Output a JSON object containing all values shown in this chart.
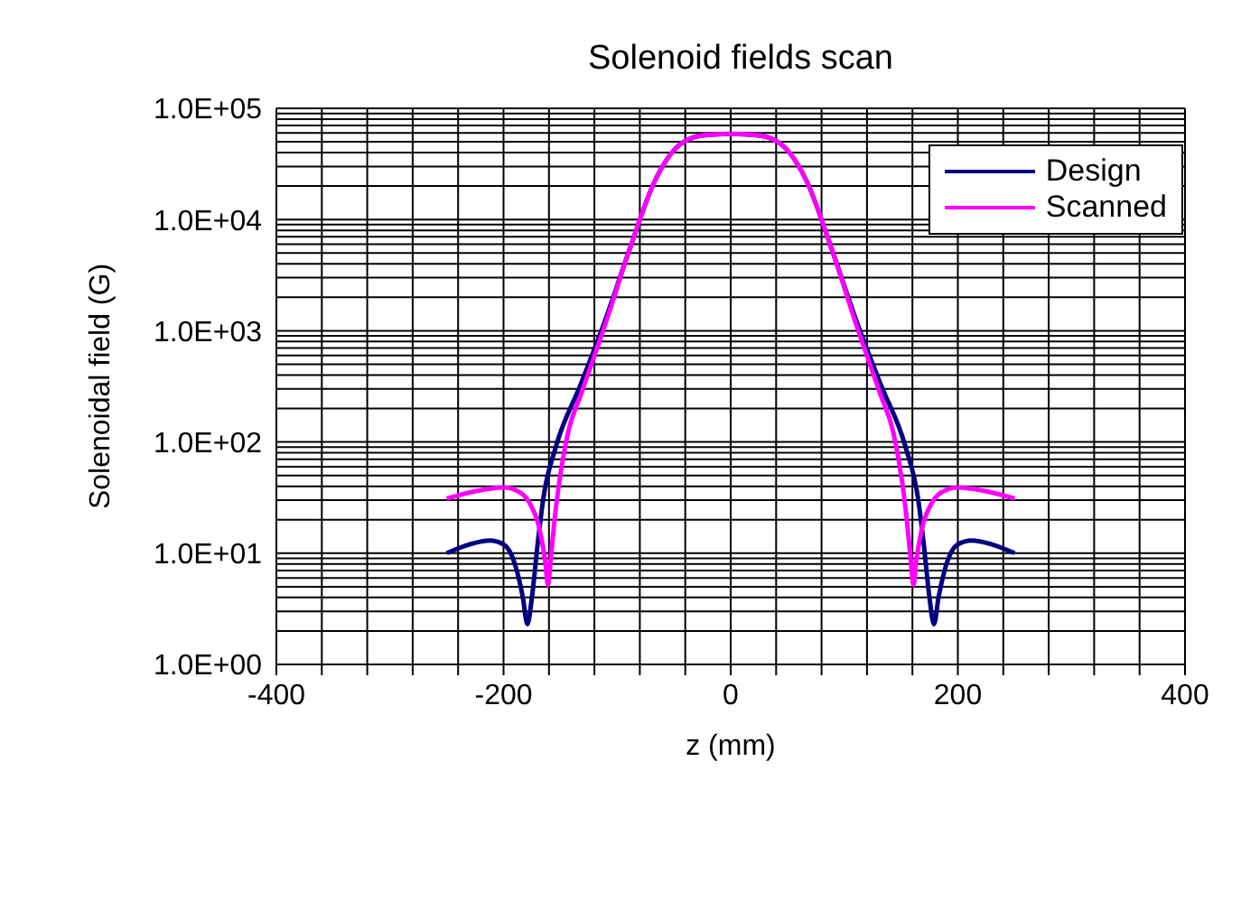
{
  "chart_data": {
    "type": "line",
    "title": "Solenoid fields scan",
    "xlabel": "z (mm)",
    "ylabel": "Solenoidal field (G)",
    "log": "y",
    "grid": true,
    "legend": "top right",
    "marker": "none",
    "line_style": "solid",
    "xlim": [
      -400,
      400
    ],
    "xticks": [
      -400,
      {
        "value": -360,
        "label": null
      },
      {
        "value": -320,
        "label": null
      },
      {
        "value": -280,
        "label": null
      },
      {
        "value": -240,
        "label": null
      },
      -200,
      {
        "value": -160,
        "label": null
      },
      {
        "value": -120,
        "label": null
      },
      {
        "value": -80,
        "label": null
      },
      {
        "value": -40,
        "label": null
      },
      0,
      {
        "value": 40,
        "label": null
      },
      {
        "value": 80,
        "label": null
      },
      {
        "value": 120,
        "label": null
      },
      {
        "value": 160,
        "label": null
      },
      200,
      {
        "value": 240,
        "label": null
      },
      {
        "value": 280,
        "label": null
      },
      {
        "value": 320,
        "label": null
      },
      {
        "value": 360,
        "label": null
      },
      400
    ],
    "ylim": [
      1,
      100000
    ],
    "yticks": [
      {
        "value": 1,
        "label": "1.0E+00"
      },
      {
        "value": 2,
        "label": null
      },
      {
        "value": 3,
        "label": null
      },
      {
        "value": 4,
        "label": null
      },
      {
        "value": 5,
        "label": null
      },
      {
        "value": 6,
        "label": null
      },
      {
        "value": 7,
        "label": null
      },
      {
        "value": 8,
        "label": null
      },
      {
        "value": 9,
        "label": null
      },
      {
        "value": 10,
        "label": "1.0E+01"
      },
      {
        "value": 20,
        "label": null
      },
      {
        "value": 30,
        "label": null
      },
      {
        "value": 40,
        "label": null
      },
      {
        "value": 50,
        "label": null
      },
      {
        "value": 60,
        "label": null
      },
      {
        "value": 70,
        "label": null
      },
      {
        "value": 80,
        "label": null
      },
      {
        "value": 90,
        "label": null
      },
      {
        "value": 100,
        "label": "1.0E+02"
      },
      {
        "value": 200,
        "label": null
      },
      {
        "value": 300,
        "label": null
      },
      {
        "value": 400,
        "label": null
      },
      {
        "value": 500,
        "label": null
      },
      {
        "value": 600,
        "label": null
      },
      {
        "value": 700,
        "label": null
      },
      {
        "value": 800,
        "label": null
      },
      {
        "value": 900,
        "label": null
      },
      {
        "value": 1000,
        "label": "1.0E+03"
      },
      {
        "value": 2000,
        "label": null
      },
      {
        "value": 3000,
        "label": null
      },
      {
        "value": 4000,
        "label": null
      },
      {
        "value": 5000,
        "label": null
      },
      {
        "value": 6000,
        "label": null
      },
      {
        "value": 7000,
        "label": null
      },
      {
        "value": 8000,
        "label": null
      },
      {
        "value": 9000,
        "label": null
      },
      {
        "value": 10000,
        "label": "1.0E+04"
      },
      {
        "value": 20000,
        "label": null
      },
      {
        "value": 30000,
        "label": null
      },
      {
        "value": 40000,
        "label": null
      },
      {
        "value": 50000,
        "label": null
      },
      {
        "value": 60000,
        "label": null
      },
      {
        "value": 70000,
        "label": null
      },
      {
        "value": 80000,
        "label": null
      },
      {
        "value": 90000,
        "label": null
      },
      {
        "value": 100000,
        "label": "1.0E+05"
      }
    ],
    "series": [
      {
        "name": "Design",
        "color": "#000080",
        "x": [
          -250,
          -230,
          -212,
          -200,
          -190,
          -183,
          -179,
          -175,
          -170,
          -165,
          -154,
          -132,
          -111,
          -89,
          -67,
          -45,
          -25,
          0,
          25,
          45,
          67,
          89,
          111,
          132,
          154,
          165,
          170,
          175,
          179,
          183,
          190,
          200,
          212,
          230,
          250
        ],
        "values": [
          10,
          12,
          13,
          12,
          8,
          4,
          2.3,
          4,
          12,
          31,
          90,
          330,
          1200,
          5400,
          22000,
          47000,
          57000,
          59000,
          57000,
          47000,
          22000,
          5400,
          1200,
          330,
          90,
          31,
          12,
          4,
          2.3,
          4,
          8,
          12,
          13,
          12,
          10
        ]
      },
      {
        "name": "Scanned",
        "color": "#ff00ff",
        "x": [
          -250,
          -225,
          -200,
          -185,
          -176,
          -168,
          -163,
          -161,
          -158,
          -154,
          -143,
          -132,
          -111,
          -89,
          -67,
          -45,
          -25,
          0,
          25,
          45,
          67,
          89,
          111,
          132,
          143,
          154,
          158,
          161,
          163,
          168,
          176,
          185,
          200,
          225,
          250
        ],
        "values": [
          31,
          36,
          39,
          35,
          27,
          16,
          8,
          5.2,
          10,
          25,
          124,
          265,
          1100,
          5400,
          22000,
          47000,
          57000,
          59000,
          57000,
          47000,
          22000,
          5400,
          1100,
          265,
          124,
          25,
          10,
          5.2,
          8,
          16,
          27,
          35,
          39,
          36,
          31
        ]
      }
    ]
  }
}
